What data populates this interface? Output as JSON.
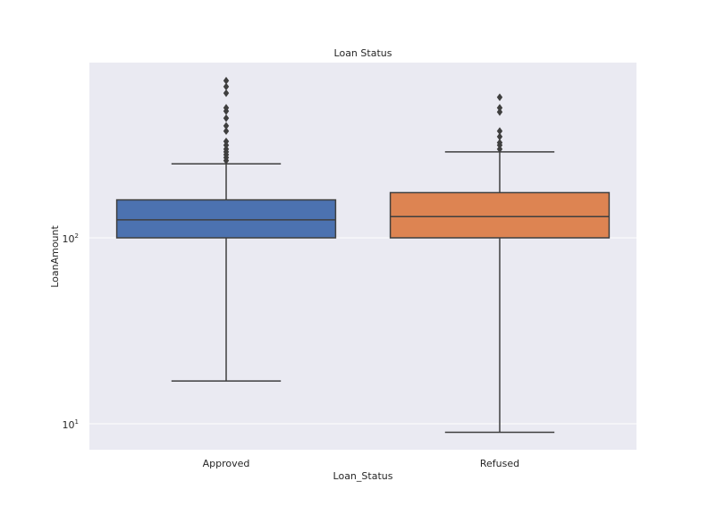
{
  "chart_data": {
    "type": "box",
    "title": "Loan Status",
    "xlabel": "Loan_Status",
    "ylabel": "LoanAmount",
    "yscale": "log",
    "ylim": [
      7,
      850
    ],
    "ytick_values": [
      10,
      100
    ],
    "ytick_bases": [
      "10",
      "10"
    ],
    "ytick_exponents": [
      "1",
      "2"
    ],
    "grid": true,
    "categories": [
      "Approved",
      "Refused"
    ],
    "boxes": [
      {
        "category": "Approved",
        "color": "#4c72b0",
        "whisker_low": 17,
        "q1": 100,
        "median": 125,
        "q3": 160,
        "whisker_high": 250,
        "outliers": [
          260,
          270,
          280,
          290,
          300,
          315,
          330,
          375,
          400,
          440,
          480,
          500,
          600,
          650,
          700
        ]
      },
      {
        "category": "Refused",
        "color": "#dd8452",
        "whisker_low": 9,
        "q1": 100,
        "median": 130,
        "q3": 175,
        "whisker_high": 290,
        "outliers": [
          300,
          315,
          325,
          350,
          375,
          475,
          500,
          570
        ]
      }
    ]
  },
  "colors": {
    "axes_background": "#eaeaf2",
    "grid": "#ffffff",
    "box_edge": "#3f3f3f",
    "text": "#262626"
  }
}
